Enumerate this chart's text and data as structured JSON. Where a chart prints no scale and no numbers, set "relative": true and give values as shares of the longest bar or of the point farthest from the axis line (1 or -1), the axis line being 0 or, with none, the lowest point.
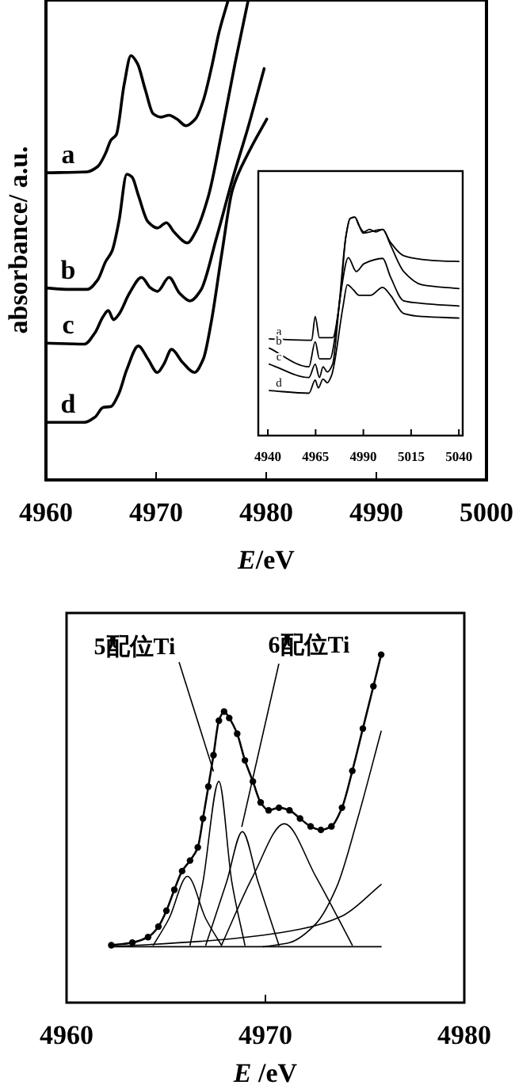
{
  "chart_data": [
    {
      "type": "line",
      "xlabel": "E/eV",
      "ylabel": "absorbance/ a.u.",
      "xlim": [
        4960,
        5000
      ],
      "xticks": [
        4960,
        4970,
        4980,
        4990,
        5000
      ],
      "relative": true,
      "series": [
        {
          "name": "a",
          "color": "#000000",
          "x": [
            4960,
            4963.74,
            4964.7,
            4965.42,
            4965.9,
            4966.38,
            4967.1,
            4967.72,
            4968.3,
            4969.02,
            4969.74,
            4970.46,
            4971.18,
            4971.89,
            4972.71,
            4973.57,
            4974.29,
            4975.01,
            4975.73,
            4976.55
          ],
          "values": [
            0.64,
            0.642,
            0.653,
            0.681,
            0.708,
            0.719,
            0.824,
            0.884,
            0.868,
            0.813,
            0.763,
            0.756,
            0.76,
            0.752,
            0.738,
            0.752,
            0.791,
            0.857,
            0.934,
            1.0
          ]
        },
        {
          "name": "b",
          "color": "#000000",
          "x": [
            4960,
            4962.06,
            4963.74,
            4964.7,
            4965.42,
            4966.0,
            4966.62,
            4967.34,
            4967.82,
            4968.39,
            4969.26,
            4970.12,
            4970.94,
            4971.65,
            4972.85,
            4973.57,
            4974.77,
            4975.97,
            4977.17,
            4978.37
          ],
          "values": [
            0.4,
            0.397,
            0.397,
            0.417,
            0.455,
            0.477,
            0.538,
            0.637,
            0.631,
            0.593,
            0.538,
            0.525,
            0.536,
            0.516,
            0.494,
            0.516,
            0.593,
            0.725,
            0.868,
            1.0
          ]
        },
        {
          "name": "c",
          "color": "#000000",
          "x": [
            4960,
            4963.5,
            4964.46,
            4965.18,
            4965.66,
            4966.14,
            4966.62,
            4967.58,
            4968.68,
            4969.5,
            4970.12,
            4971.18,
            4972.13,
            4973.09,
            4974.05,
            4975.49,
            4976.93,
            4978.37,
            4979.81
          ],
          "values": [
            0.285,
            0.283,
            0.307,
            0.34,
            0.353,
            0.334,
            0.345,
            0.389,
            0.422,
            0.4,
            0.393,
            0.422,
            0.389,
            0.373,
            0.395,
            0.505,
            0.626,
            0.736,
            0.857
          ]
        },
        {
          "name": "d",
          "color": "#000000",
          "x": [
            4960,
            4963.5,
            4964.46,
            4965.18,
            4965.9,
            4966.62,
            4967.34,
            4968.39,
            4969.26,
            4970.12,
            4970.7,
            4971.41,
            4972.37,
            4973.48,
            4974.29,
            4975.01,
            4975.97,
            4976.93,
            4978.37,
            4980.05
          ],
          "values": [
            0.12,
            0.12,
            0.131,
            0.151,
            0.153,
            0.18,
            0.23,
            0.279,
            0.252,
            0.224,
            0.241,
            0.272,
            0.246,
            0.224,
            0.252,
            0.329,
            0.472,
            0.604,
            0.681,
            0.752
          ]
        }
      ]
    },
    {
      "type": "line",
      "xlim": [
        4935,
        5042
      ],
      "xticks": [
        4940,
        4965,
        4990,
        5015,
        5040
      ],
      "relative": true,
      "series": [
        {
          "name": "a",
          "color": "#000000",
          "x": [
            4940.8,
            4962.9,
            4964.8,
            4967.0,
            4973.9,
            4978.0,
            4980.8,
            4983.0,
            4985.5,
            4987.7,
            4990.4,
            4993.2,
            4996.5,
            5000.1,
            5004.2,
            5011.1,
            5020.7,
            5031.7,
            5040.0
          ],
          "values": [
            0.443,
            0.436,
            0.545,
            0.448,
            0.448,
            0.642,
            0.908,
            0.993,
            1.0,
            0.961,
            0.932,
            0.944,
            0.932,
            0.944,
            0.884,
            0.823,
            0.806,
            0.799,
            0.797
          ]
        },
        {
          "name": "b",
          "color": "#000000",
          "x": [
            4940.8,
            4961.5,
            4964.8,
            4967.0,
            4972.5,
            4976.6,
            4980.8,
            4983.0,
            4985.5,
            4989.9,
            5000.1,
            5004.2,
            5011.1,
            5020.7,
            5040.0
          ],
          "values": [
            0.4,
            0.315,
            0.429,
            0.351,
            0.351,
            0.545,
            0.908,
            0.993,
            1.0,
            0.927,
            0.944,
            0.872,
            0.751,
            0.69,
            0.673
          ]
        },
        {
          "name": "c",
          "color": "#000000",
          "x": [
            4940.8,
            4961.5,
            4964.8,
            4967.0,
            4968.9,
            4971.1,
            4973.9,
            4978.0,
            4982.1,
            4986.3,
            4990.4,
            5000.1,
            5004.2,
            5011.1,
            5020.7,
            5040.0
          ],
          "values": [
            0.327,
            0.266,
            0.327,
            0.266,
            0.315,
            0.291,
            0.327,
            0.642,
            0.814,
            0.751,
            0.787,
            0.811,
            0.726,
            0.617,
            0.605,
            0.593
          ]
        },
        {
          "name": "d",
          "color": "#000000",
          "x": [
            4940.8,
            4961.5,
            4964.8,
            4966.4,
            4968.9,
            4971.1,
            4973.3,
            4979.4,
            4981.6,
            4984.9,
            4987.7,
            4993.7,
            5000.1,
            5004.2,
            5011.1,
            5020.7,
            5040.0
          ],
          "values": [
            0.206,
            0.194,
            0.254,
            0.218,
            0.259,
            0.242,
            0.274,
            0.593,
            0.69,
            0.666,
            0.642,
            0.642,
            0.678,
            0.642,
            0.559,
            0.545,
            0.538
          ]
        }
      ]
    },
    {
      "type": "line",
      "xlabel": "E /eV",
      "xlim": [
        4960,
        4980
      ],
      "xticks": [
        4960,
        4970,
        4980
      ],
      "relative": true,
      "annotations": [
        {
          "text": "5配位Ti",
          "x": 4967.39,
          "y": 0.6
        },
        {
          "text": "6配位Ti",
          "x": 4968.81,
          "y": 0.41
        }
      ],
      "series": [
        {
          "color": "#000000",
          "marker": "circle",
          "x": [
            4962.25,
            4963.31,
            4964.1,
            4964.62,
            4965.02,
            4965.42,
            4965.81,
            4966.21,
            4966.6,
            4966.86,
            4967.13,
            4967.39,
            4967.66,
            4967.92,
            4968.18,
            4968.58,
            4968.97,
            4969.37,
            4969.76,
            4970.16,
            4970.68,
            4971.21,
            4971.74,
            4972.27,
            4972.79,
            4973.32,
            4973.85,
            4974.37,
            4974.9,
            4975.43,
            4975.82
          ],
          "values": [
            0.005,
            0.014,
            0.033,
            0.069,
            0.123,
            0.195,
            0.259,
            0.295,
            0.34,
            0.439,
            0.548,
            0.656,
            0.774,
            0.805,
            0.783,
            0.729,
            0.638,
            0.566,
            0.494,
            0.467,
            0.476,
            0.467,
            0.439,
            0.412,
            0.4,
            0.412,
            0.476,
            0.602,
            0.747,
            0.892,
            1.0
          ]
        },
        {
          "color": "#000000",
          "x": [
            4964.36,
            4965.15,
            4966.08,
            4967.0,
            4967.79
          ],
          "values": [
            0.005,
            0.096,
            0.241,
            0.096,
            0.005
          ]
        },
        {
          "color": "#000000",
          "x": [
            4966.21,
            4966.86,
            4967.66,
            4968.31,
            4968.97
          ],
          "values": [
            0.005,
            0.222,
            0.566,
            0.222,
            0.005
          ]
        },
        {
          "color": "#000000",
          "x": [
            4967.0,
            4968.05,
            4968.84,
            4969.63,
            4970.68
          ],
          "values": [
            0.005,
            0.222,
            0.394,
            0.222,
            0.005
          ]
        },
        {
          "color": "#000000",
          "x": [
            4967.79,
            4969.37,
            4970.95,
            4972.53,
            4974.37
          ],
          "values": [
            0.005,
            0.241,
            0.421,
            0.241,
            0.005
          ]
        },
        {
          "color": "#000000",
          "x": [
            4969.89,
            4971.21,
            4972.53,
            4973.58,
            4974.64,
            4975.82
          ],
          "values": [
            0,
            0.014,
            0.078,
            0.204,
            0.439,
            0.738
          ]
        },
        {
          "color": "#000000",
          "x": [
            4962.25,
            4967.79,
            4971.74,
            4973.85,
            4975.82
          ],
          "values": [
            0,
            0.024,
            0.06,
            0.105,
            0.213
          ]
        },
        {
          "color": "#000000",
          "x": [
            4962.25,
            4975.82
          ],
          "values": [
            0,
            0
          ]
        }
      ]
    }
  ]
}
